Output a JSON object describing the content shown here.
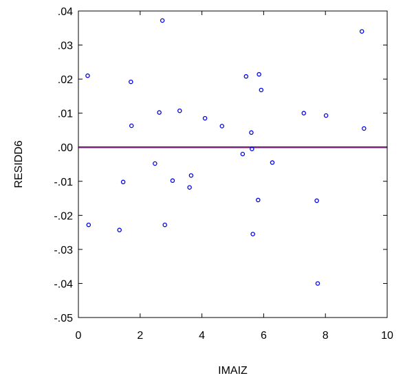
{
  "chart_data": {
    "type": "scatter",
    "xlabel": "IMAIZ",
    "ylabel": "RESIDD6",
    "xlim": [
      0,
      10
    ],
    "ylim": [
      -0.05,
      0.04
    ],
    "x_ticks": [
      0,
      2,
      4,
      6,
      8,
      10
    ],
    "x_tick_labels": [
      "0",
      "2",
      "4",
      "6",
      "8",
      "10"
    ],
    "y_ticks": [
      -0.05,
      -0.04,
      -0.03,
      -0.02,
      -0.01,
      0.0,
      0.01,
      0.02,
      0.03,
      0.04
    ],
    "y_tick_labels": [
      "-.05",
      "-.04",
      "-.03",
      "-.02",
      "-.01",
      ".00",
      ".01",
      ".02",
      ".03",
      ".04"
    ],
    "grid": false,
    "marker": "hollow-circle",
    "marker_color": "#0000ee",
    "reference_line": {
      "y": 0.0,
      "color": "#7b1f7b"
    },
    "series": [
      {
        "points": [
          {
            "x": 0.3,
            "y": 0.021
          },
          {
            "x": 0.33,
            "y": -0.0228
          },
          {
            "x": 1.33,
            "y": -0.0243
          },
          {
            "x": 1.45,
            "y": -0.0102
          },
          {
            "x": 1.7,
            "y": 0.0192
          },
          {
            "x": 1.72,
            "y": 0.0063
          },
          {
            "x": 2.48,
            "y": -0.0048
          },
          {
            "x": 2.62,
            "y": 0.0102
          },
          {
            "x": 2.72,
            "y": 0.0372
          },
          {
            "x": 2.8,
            "y": -0.0228
          },
          {
            "x": 3.05,
            "y": -0.0098
          },
          {
            "x": 3.28,
            "y": 0.0107
          },
          {
            "x": 3.6,
            "y": -0.0118
          },
          {
            "x": 3.65,
            "y": -0.0083
          },
          {
            "x": 4.1,
            "y": 0.0085
          },
          {
            "x": 4.65,
            "y": 0.0062
          },
          {
            "x": 5.32,
            "y": -0.002
          },
          {
            "x": 5.43,
            "y": 0.0208
          },
          {
            "x": 5.6,
            "y": 0.0043
          },
          {
            "x": 5.62,
            "y": -0.0005
          },
          {
            "x": 5.65,
            "y": -0.0255
          },
          {
            "x": 5.82,
            "y": -0.0155
          },
          {
            "x": 5.85,
            "y": 0.0214
          },
          {
            "x": 5.92,
            "y": 0.0168
          },
          {
            "x": 6.28,
            "y": -0.0045
          },
          {
            "x": 7.3,
            "y": 0.01
          },
          {
            "x": 7.72,
            "y": -0.0157
          },
          {
            "x": 7.75,
            "y": -0.04
          },
          {
            "x": 8.02,
            "y": 0.0093
          },
          {
            "x": 9.18,
            "y": 0.034
          },
          {
            "x": 9.25,
            "y": 0.0055
          }
        ]
      }
    ]
  }
}
